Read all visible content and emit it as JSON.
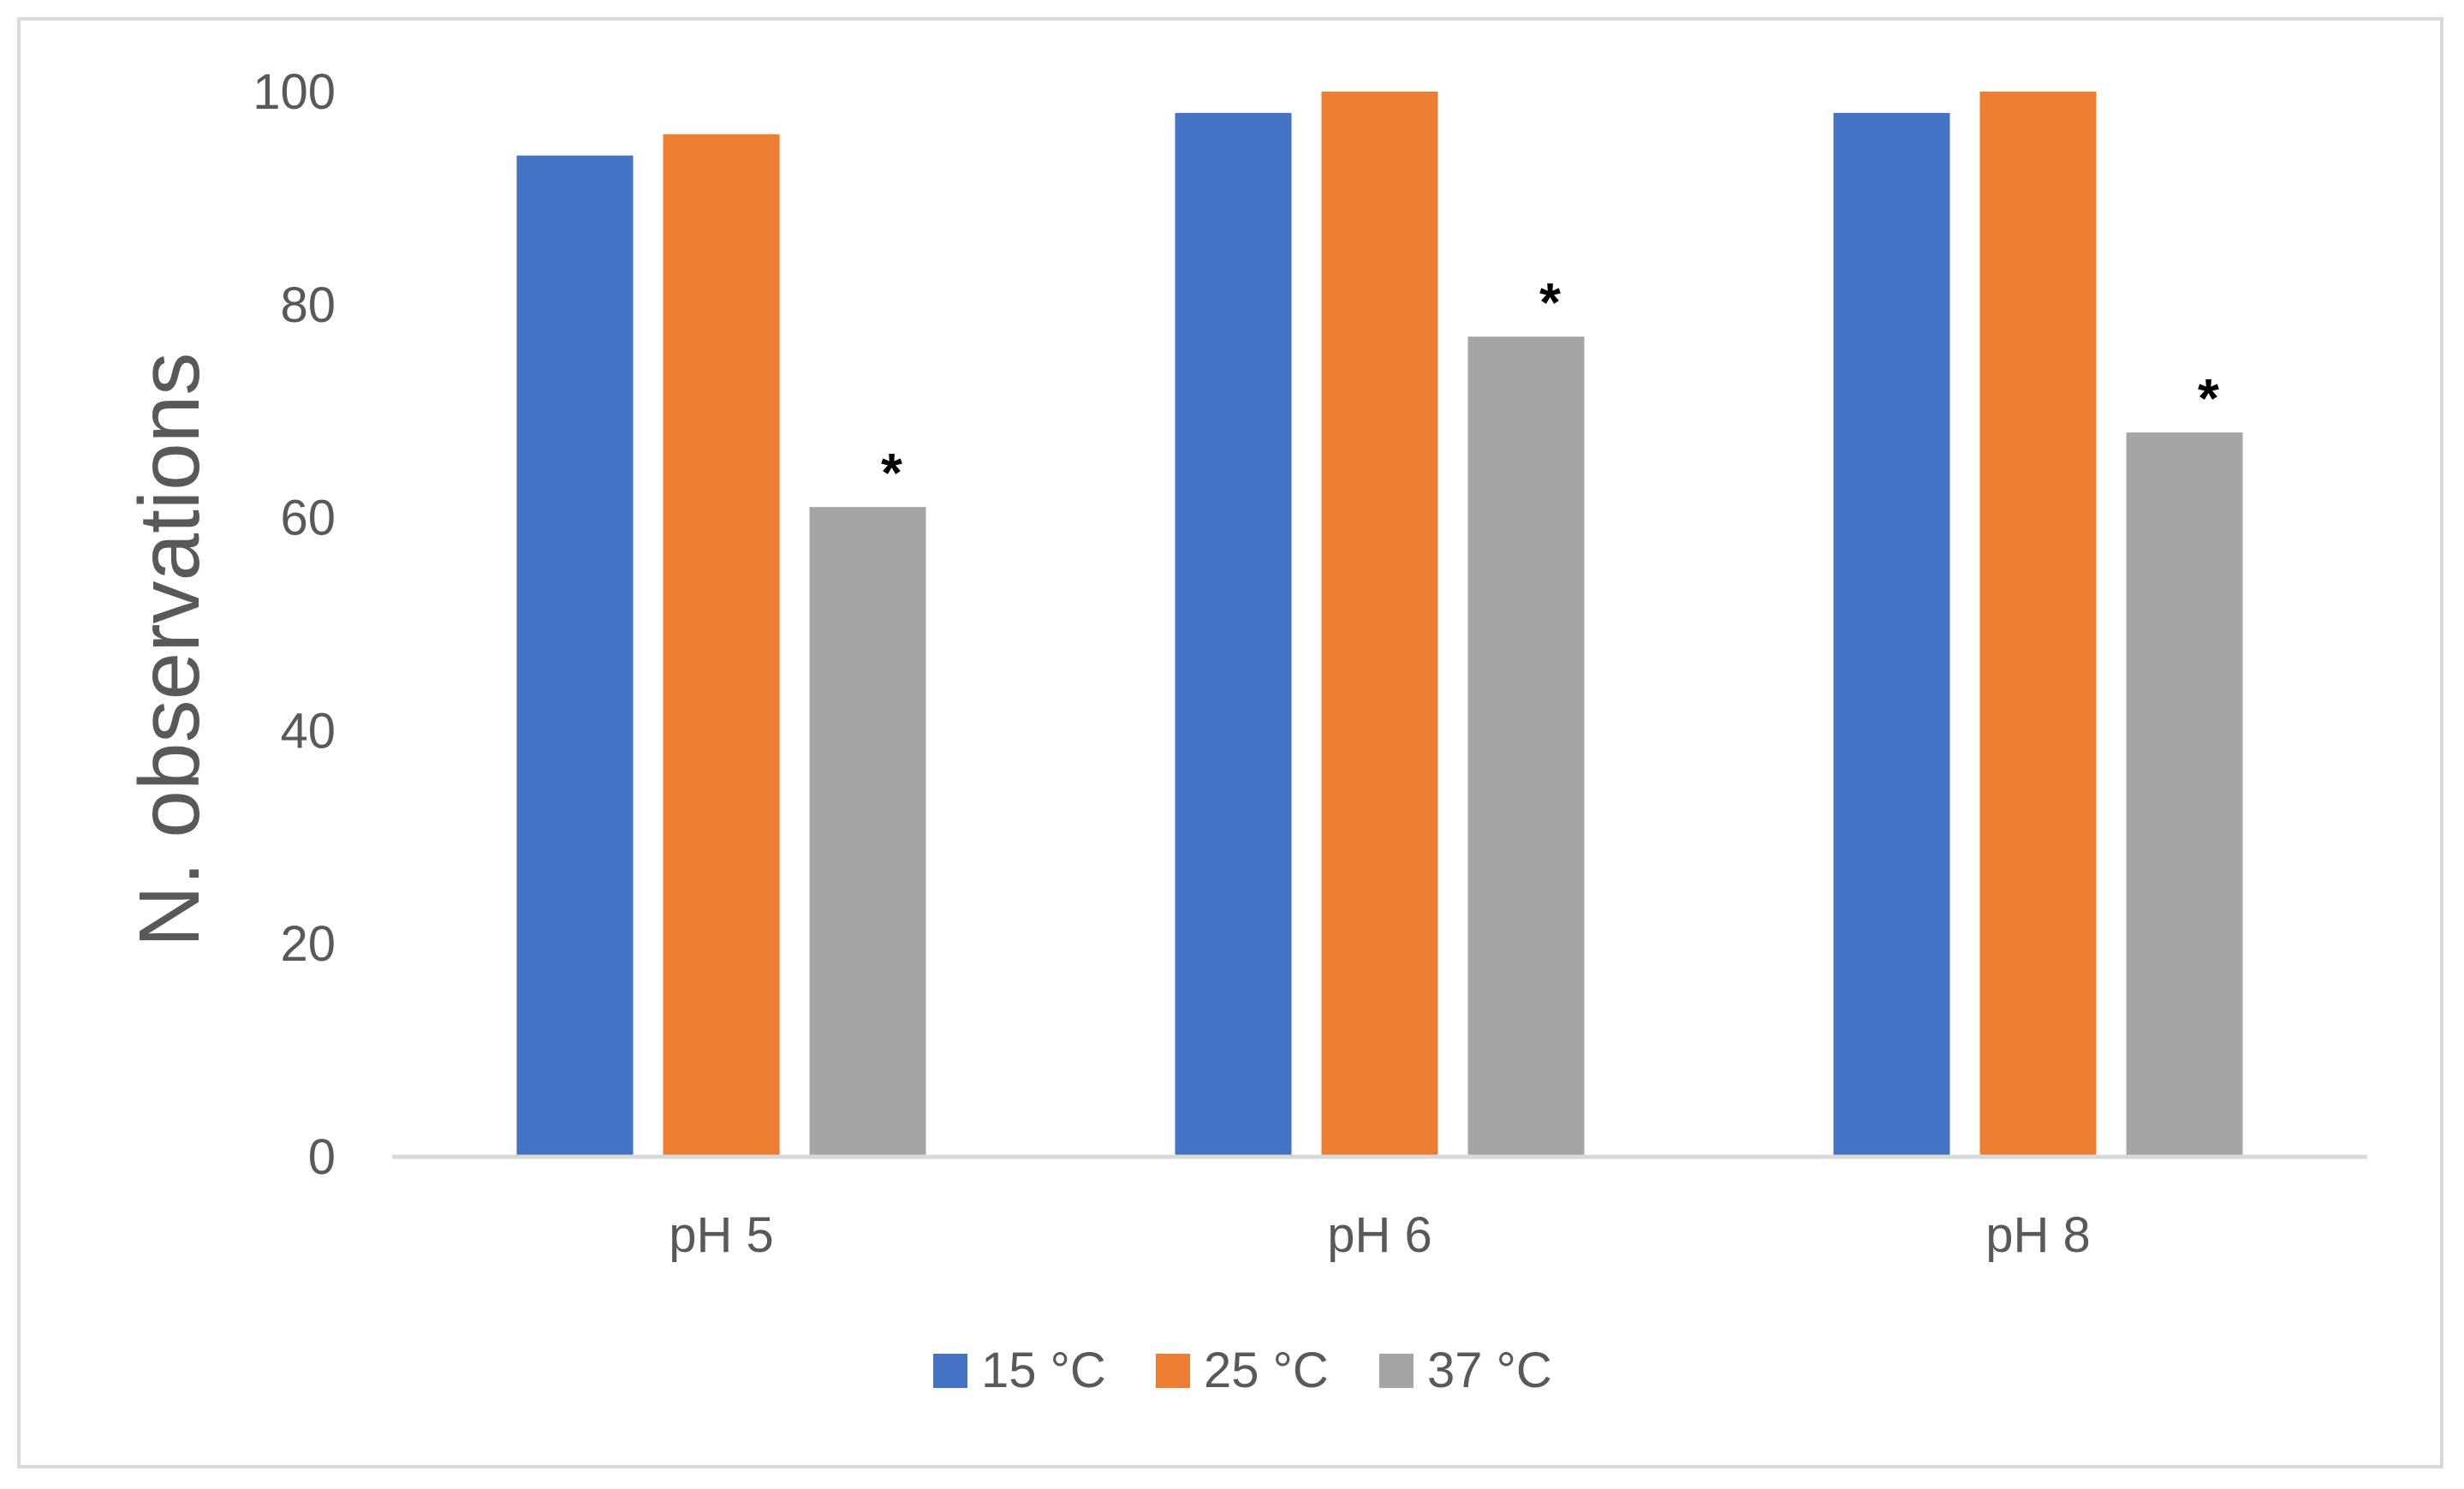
{
  "chart_data": {
    "type": "bar",
    "categories": [
      "pH 5",
      "pH 6",
      "pH 8"
    ],
    "series": [
      {
        "name": "15 °C",
        "values": [
          94,
          98,
          98
        ],
        "color": "#4472c4"
      },
      {
        "name": "25 °C",
        "values": [
          96,
          100,
          100
        ],
        "color": "#ed7d31"
      },
      {
        "name": "37 °C",
        "values": [
          61,
          77,
          68
        ],
        "color": "#a5a5a5"
      }
    ],
    "title": "",
    "xlabel": "",
    "ylabel": "N. observations",
    "ylim": [
      0,
      100
    ],
    "yticks": [
      0,
      20,
      40,
      60,
      80,
      100
    ],
    "grid": false,
    "legend_position": "bottom",
    "annotations": [
      {
        "category": "pH 5",
        "series": "37 °C",
        "text": "*"
      },
      {
        "category": "pH 6",
        "series": "37 °C",
        "text": "*"
      },
      {
        "category": "pH 8",
        "series": "37 °C",
        "text": "*"
      }
    ],
    "axis_color": "#d9d9d9",
    "text_color": "#595959"
  }
}
